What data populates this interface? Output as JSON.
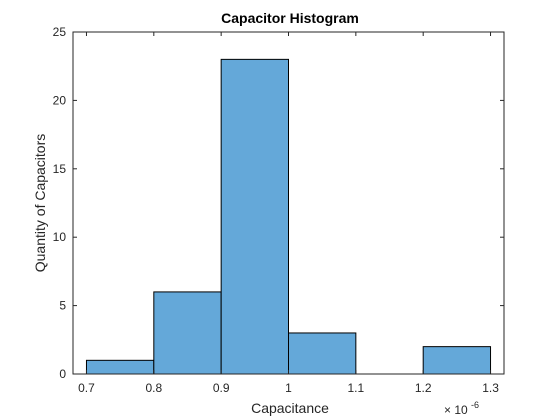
{
  "chart_data": {
    "type": "bar",
    "title": "Capacitor Histogram",
    "xlabel": "Capacitance",
    "ylabel": "Quantity of Capacitors",
    "x_exponent_label": {
      "base": "× 10",
      "exponent": "-6"
    },
    "bin_edges": [
      0.7,
      0.8,
      0.9,
      1.0,
      1.1,
      1.2,
      1.3
    ],
    "values": [
      1,
      6,
      23,
      3,
      0,
      2
    ],
    "xlim": [
      0.68,
      1.32
    ],
    "ylim": [
      0,
      25
    ],
    "xticks": [
      "0.7",
      "0.8",
      "0.9",
      "1",
      "1.1",
      "1.2",
      "1.3"
    ],
    "yticks": [
      "0",
      "5",
      "10",
      "15",
      "20",
      "25"
    ],
    "grid": false,
    "bar_color": "#64a8d9",
    "edge_color": "#000000"
  }
}
